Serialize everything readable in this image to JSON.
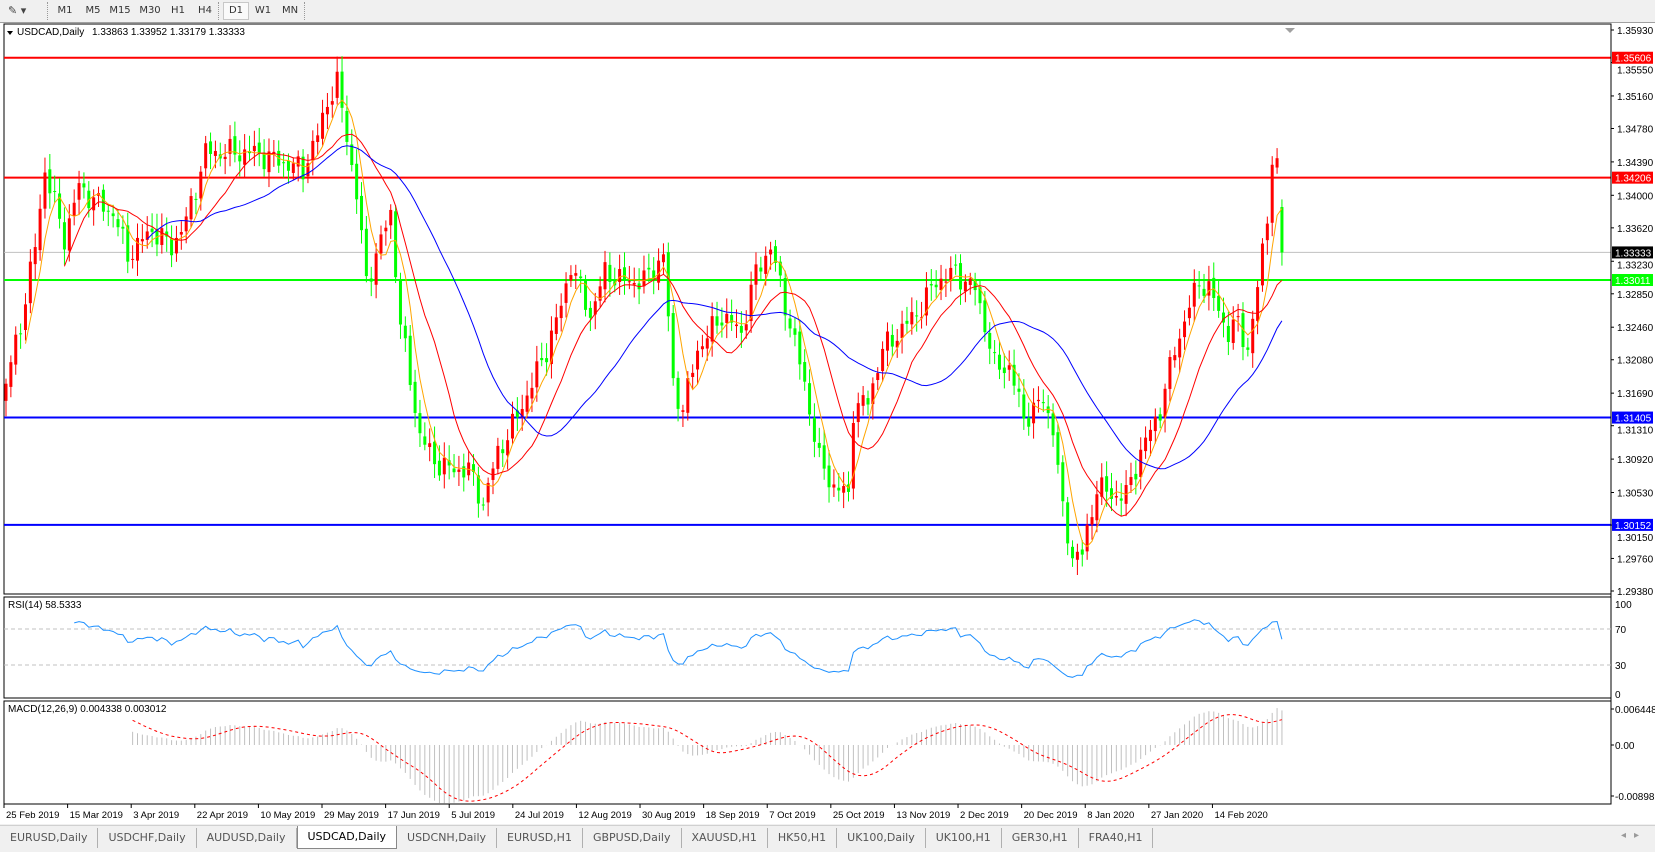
{
  "toolbar": {
    "tool_icon": "line-studies-icon",
    "timeframes": [
      "M1",
      "M5",
      "M15",
      "M30",
      "H1",
      "H4",
      "D1",
      "W1",
      "MN"
    ],
    "active_timeframe": "D1"
  },
  "chart": {
    "symbol_label": "USDCAD,Daily",
    "ohlc_label": "1.33863 1.33952 1.33179 1.33333",
    "rsi_label": "RSI(14) 58.5333",
    "macd_label": "MACD(12,26,9) 0.004338 0.003012"
  },
  "colors": {
    "bull_candle": "#ff0000",
    "bear_candle": "#00ff00",
    "ma_fast": "#ffa500",
    "ma_mid": "#ff0000",
    "ma_slow": "#0000ff",
    "rsi_line": "#1e90ff",
    "macd_hist": "#c0c0c0",
    "macd_signal": "#ff0000"
  },
  "chart_data": {
    "type": "candlestick",
    "symbol": "USDCAD",
    "timeframe": "Daily",
    "ylim": [
      1.29345,
      1.36
    ],
    "last_bar": {
      "open": 1.33863,
      "high": 1.33952,
      "low": 1.33179,
      "close": 1.33333
    },
    "close_keypoints": [
      [
        0,
        1.318
      ],
      [
        3,
        1.325
      ],
      [
        6,
        1.334
      ],
      [
        8,
        1.343
      ],
      [
        12,
        1.335
      ],
      [
        15,
        1.341
      ],
      [
        19,
        1.339
      ],
      [
        22,
        1.338
      ],
      [
        25,
        1.333
      ],
      [
        30,
        1.336
      ],
      [
        34,
        1.334
      ],
      [
        37,
        1.337
      ],
      [
        41,
        1.345
      ],
      [
        46,
        1.345
      ],
      [
        51,
        1.345
      ],
      [
        56,
        1.344
      ],
      [
        61,
        1.343
      ],
      [
        64,
        1.347
      ],
      [
        66,
        1.351
      ],
      [
        68,
        1.353
      ],
      [
        70,
        1.347
      ],
      [
        72,
        1.34
      ],
      [
        74,
        1.33
      ],
      [
        76,
        1.333
      ],
      [
        79,
        1.338
      ],
      [
        81,
        1.325
      ],
      [
        85,
        1.312
      ],
      [
        88,
        1.309
      ],
      [
        91,
        1.308
      ],
      [
        95,
        1.308
      ],
      [
        98,
        1.304
      ],
      [
        101,
        1.31
      ],
      [
        104,
        1.313
      ],
      [
        108,
        1.318
      ],
      [
        111,
        1.322
      ],
      [
        114,
        1.327
      ],
      [
        116,
        1.332
      ],
      [
        120,
        1.326
      ],
      [
        123,
        1.331
      ],
      [
        127,
        1.33
      ],
      [
        131,
        1.33
      ],
      [
        135,
        1.333
      ],
      [
        137,
        1.318
      ],
      [
        139,
        1.315
      ],
      [
        142,
        1.322
      ],
      [
        147,
        1.326
      ],
      [
        151,
        1.324
      ],
      [
        154,
        1.331
      ],
      [
        157,
        1.334
      ],
      [
        161,
        1.325
      ],
      [
        164,
        1.318
      ],
      [
        167,
        1.309
      ],
      [
        170,
        1.306
      ],
      [
        173,
        1.305
      ],
      [
        174,
        1.315
      ],
      [
        177,
        1.316
      ],
      [
        180,
        1.322
      ],
      [
        185,
        1.325
      ],
      [
        188,
        1.327
      ],
      [
        191,
        1.33
      ],
      [
        195,
        1.331
      ],
      [
        199,
        1.329
      ],
      [
        201,
        1.325
      ],
      [
        203,
        1.32
      ],
      [
        206,
        1.32
      ],
      [
        209,
        1.314
      ],
      [
        213,
        1.316
      ],
      [
        215,
        1.313
      ],
      [
        217,
        1.303
      ],
      [
        219,
        1.298
      ],
      [
        221,
        1.298
      ],
      [
        224,
        1.306
      ],
      [
        227,
        1.305
      ],
      [
        230,
        1.305
      ],
      [
        233,
        1.31
      ],
      [
        237,
        1.315
      ],
      [
        240,
        1.322
      ],
      [
        243,
        1.327
      ],
      [
        245,
        1.33
      ],
      [
        247,
        1.329
      ],
      [
        251,
        1.324
      ],
      [
        253,
        1.325
      ],
      [
        255,
        1.322
      ],
      [
        257,
        1.329
      ],
      [
        259,
        1.338
      ],
      [
        260,
        1.344
      ],
      [
        261,
        1.343
      ],
      [
        262,
        1.33333
      ]
    ],
    "moving_averages": [
      {
        "period": 5
      },
      {
        "period": 13
      },
      {
        "period": 30
      }
    ],
    "price_ticks": [
      "1.35930",
      "1.35550",
      "1.35160",
      "1.34780",
      "1.34390",
      "1.34000",
      "1.33620",
      "1.33230",
      "1.32850",
      "1.32460",
      "1.32080",
      "1.31690",
      "1.31310",
      "1.30920",
      "1.30530",
      "1.30150",
      "1.29760",
      "1.29380"
    ],
    "horizontal_lines": [
      {
        "price": "1.35606",
        "color": "#ff0000"
      },
      {
        "price": "1.34206",
        "color": "#ff0000"
      },
      {
        "price": "1.33333",
        "color": "#000000",
        "line_color": "#c0c0c0"
      },
      {
        "price": "1.33011",
        "color": "#00ff00"
      },
      {
        "price": "1.31405",
        "color": "#0000ff"
      },
      {
        "price": "1.30152",
        "color": "#0000ff"
      }
    ],
    "date_labels": [
      "25 Feb 2019",
      "15 Mar 2019",
      "3 Apr 2019",
      "22 Apr 2019",
      "10 May 2019",
      "29 May 2019",
      "17 Jun 2019",
      "5 Jul 2019",
      "24 Jul 2019",
      "12 Aug 2019",
      "30 Aug 2019",
      "18 Sep 2019",
      "7 Oct 2019",
      "25 Oct 2019",
      "13 Nov 2019",
      "2 Dec 2019",
      "20 Dec 2019",
      "8 Jan 2020",
      "27 Jan 2020",
      "14 Feb 2020"
    ],
    "rsi": {
      "period": 14,
      "value": 58.5333,
      "levels": [
        "100",
        "70",
        "30",
        "0"
      ]
    },
    "macd": {
      "fast": 12,
      "slow": 26,
      "signal": 9,
      "main": 0.004338,
      "signal_value": 0.003012,
      "ylim": [
        -0.008982,
        0.006448
      ],
      "ticks": [
        "0.006448",
        "0.00",
        "-0.008982"
      ]
    }
  },
  "tabs": [
    "EURUSD,Daily",
    "USDCHF,Daily",
    "AUDUSD,Daily",
    "USDCAD,Daily",
    "USDCNH,Daily",
    "EURUSD,H1",
    "GBPUSD,Daily",
    "XAUUSD,H1",
    "HK50,H1",
    "UK100,Daily",
    "UK100,H1",
    "GER30,H1",
    "FRA40,H1"
  ],
  "active_tab": "USDCAD,Daily"
}
